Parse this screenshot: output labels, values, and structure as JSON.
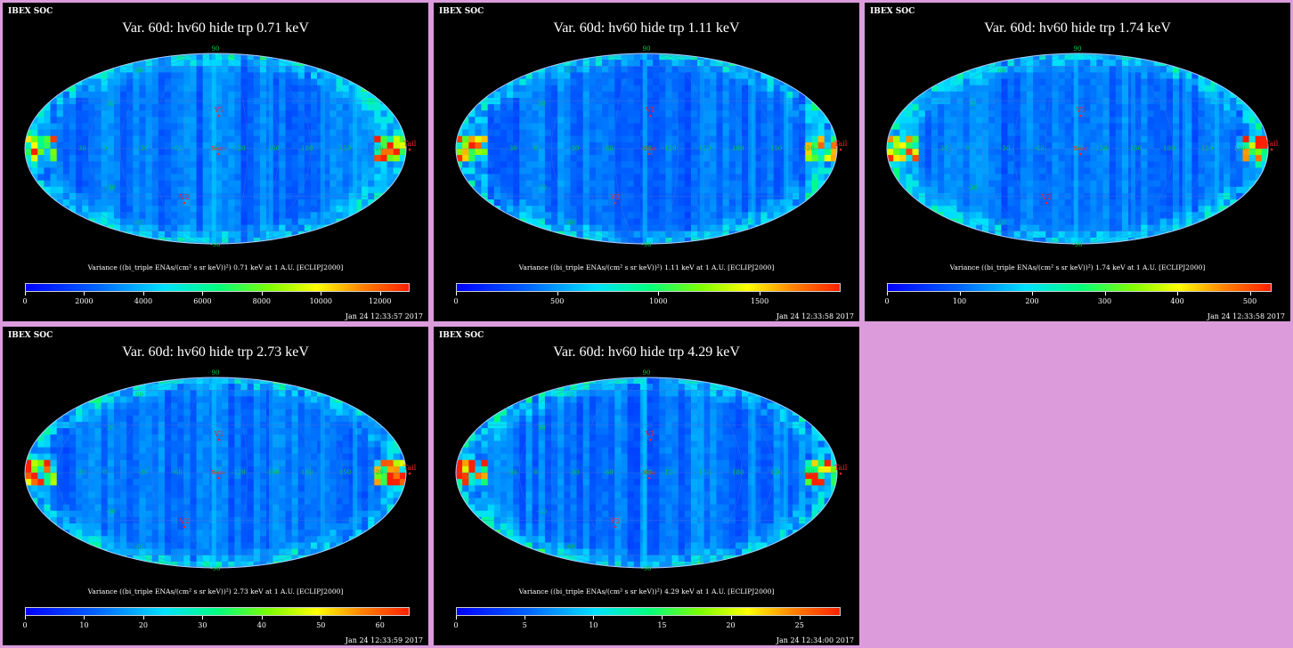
{
  "panels": [
    {
      "soc": "IBEX SOC",
      "title": "Var. 60d: hv60 hide trp 0.71 keV",
      "cb_label": "Variance ((bi_triple ENAs/(cm² s sr keV))²) 0.71 keV at 1 A.U. [ECLIPJ2000]",
      "ticks": [
        "0",
        "2000",
        "4000",
        "6000",
        "8000",
        "10000",
        "12000"
      ],
      "date": "Jan 24 12:33:57 2017",
      "hot_level": 0.9
    },
    {
      "soc": "IBEX SOC",
      "title": "Var. 60d: hv60 hide trp 1.11 keV",
      "cb_label": "Variance ((bi_triple ENAs/(cm² s sr keV))²) 1.11 keV at 1 A.U. [ECLIPJ2000]",
      "ticks": [
        "0",
        "500",
        "1000",
        "1500"
      ],
      "date": "Jan 24 12:33:58 2017",
      "hot_level": 0.85
    },
    {
      "soc": "IBEX SOC",
      "title": "Var. 60d: hv60 hide trp 1.74 keV",
      "cb_label": "Variance ((bi_triple ENAs/(cm² s sr keV))²) 1.74 keV at 1 A.U. [ECLIPJ2000]",
      "ticks": [
        "0",
        "100",
        "200",
        "300",
        "400",
        "500"
      ],
      "date": "Jan 24 12:33:58 2017",
      "hot_level": 0.8
    },
    {
      "soc": "IBEX SOC",
      "title": "Var. 60d: hv60 hide trp 2.73 keV",
      "cb_label": "Variance ((bi_triple ENAs/(cm² s sr keV))²) 2.73 keV at 1 A.U. [ECLIPJ2000]",
      "ticks": [
        "0",
        "10",
        "20",
        "30",
        "40",
        "50",
        "60"
      ],
      "date": "Jan 24 12:33:59 2017",
      "hot_level": 0.85
    },
    {
      "soc": "IBEX SOC",
      "title": "Var. 60d: hv60 hide trp 4.29 keV",
      "cb_label": "Variance ((bi_triple ENAs/(cm² s sr keV))²) 4.29 keV at 1 A.U. [ECLIPJ2000]",
      "ticks": [
        "0",
        "5",
        "10",
        "15",
        "20",
        "25"
      ],
      "date": "Jan 24 12:34:00 2017",
      "hot_level": 0.95
    }
  ],
  "map_labels": {
    "nose": "Nose",
    "tail": "Tail",
    "v1": "V1",
    "v2": "V2",
    "lon": [
      "30",
      "0",
      "-30",
      "-60",
      "-90",
      "-120",
      "-150",
      "180",
      "150",
      "120"
    ],
    "lat": [
      "90",
      "60",
      "30",
      "-30",
      "-60",
      "-90"
    ]
  },
  "colors": {
    "background": "#dc9cdc",
    "panel": "#000000",
    "map_base": "#0033ff",
    "grid_label": "#00cc44",
    "marker": "#ff2222"
  },
  "chart_data": [
    {
      "type": "heatmap",
      "title": "Var. 60d: hv60 hide trp 0.71 keV",
      "projection": "Mollweide/Aitoff sky map",
      "colorbar_range": [
        0,
        13000
      ],
      "colorbar_label": "Variance ((bi_triple ENAs/(cm² s sr keV))²) 0.71 keV at 1 A.U. [ECLIPJ2000]"
    },
    {
      "type": "heatmap",
      "title": "Var. 60d: hv60 hide trp 1.11 keV",
      "projection": "Mollweide/Aitoff sky map",
      "colorbar_range": [
        0,
        1900
      ],
      "colorbar_label": "Variance ((bi_triple ENAs/(cm² s sr keV))²) 1.11 keV at 1 A.U. [ECLIPJ2000]"
    },
    {
      "type": "heatmap",
      "title": "Var. 60d: hv60 hide trp 1.74 keV",
      "projection": "Mollweide/Aitoff sky map",
      "colorbar_range": [
        0,
        530
      ],
      "colorbar_label": "Variance ((bi_triple ENAs/(cm² s sr keV))²) 1.74 keV at 1 A.U. [ECLIPJ2000]"
    },
    {
      "type": "heatmap",
      "title": "Var. 60d: hv60 hide trp 2.73 keV",
      "projection": "Mollweide/Aitoff sky map",
      "colorbar_range": [
        0,
        65
      ],
      "colorbar_label": "Variance ((bi_triple ENAs/(cm² s sr keV))²) 2.73 keV at 1 A.U. [ECLIPJ2000]"
    },
    {
      "type": "heatmap",
      "title": "Var. 60d: hv60 hide trp 4.29 keV",
      "projection": "Mollweide/Aitoff sky map",
      "colorbar_range": [
        0,
        28
      ],
      "colorbar_label": "Variance ((bi_triple ENAs/(cm² s sr keV))²) 4.29 keV at 1 A.U. [ECLIPJ2000]"
    }
  ]
}
